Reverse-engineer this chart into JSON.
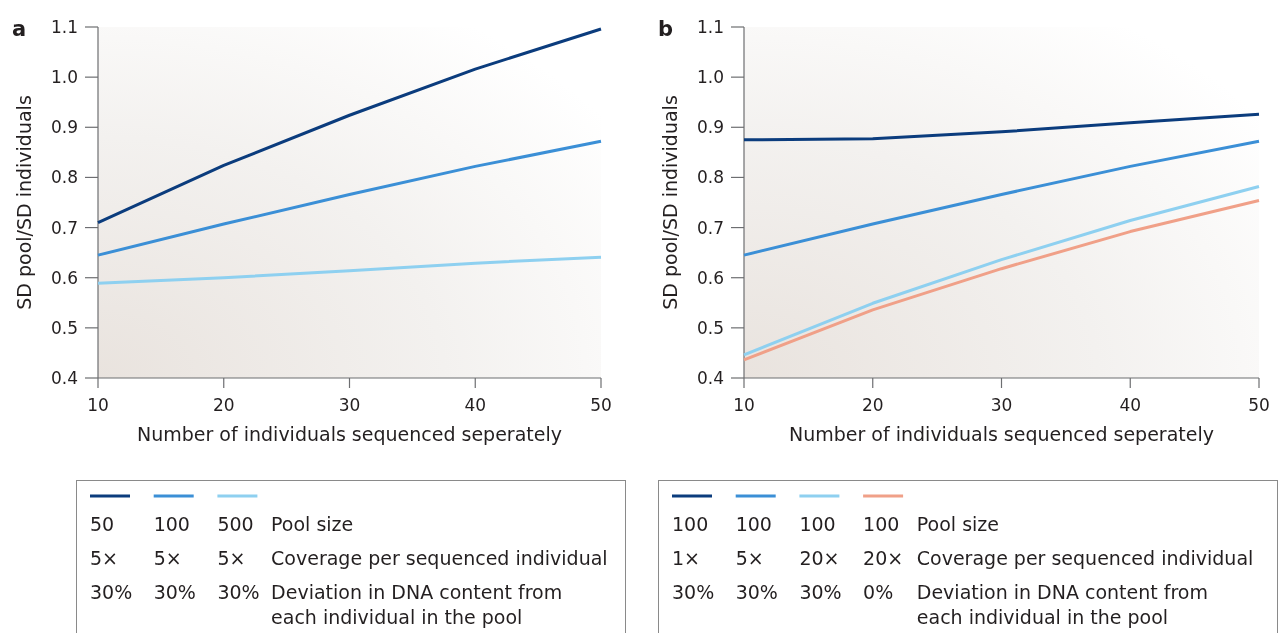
{
  "chart_data": [
    {
      "type": "line",
      "title": "a",
      "xlabel": "Number of individuals sequenced seperately",
      "ylabel": "SD pool/SD individuals",
      "x": [
        10,
        20,
        30,
        40,
        50
      ],
      "xlim": [
        10,
        50
      ],
      "xticks": [
        10,
        20,
        30,
        40,
        50
      ],
      "ylim": [
        0.4,
        1.1
      ],
      "yticks": [
        0.4,
        0.5,
        0.6,
        0.7,
        0.8,
        0.9,
        {
          "value": 1,
          "label": "1.0"
        },
        1.1
      ],
      "legend": "bottom",
      "series": [
        {
          "name": "50\n5×\n30%",
          "color": "#0b3c7d",
          "values": [
            0.71,
            0.824,
            0.924,
            1.016,
            1.096
          ]
        },
        {
          "name": "100\n5×\n30%",
          "color": "#3b8fd6",
          "values": [
            0.645,
            0.707,
            0.766,
            0.822,
            0.872
          ]
        },
        {
          "name": "500\n5×\n30%",
          "color": "#8ed0f0",
          "values": [
            0.589,
            0.6,
            0.614,
            0.629,
            0.641
          ]
        }
      ],
      "annotations": [
        "Pool size",
        "Coverage per sequenced individual",
        "Deviation in DNA content from each individual in the pool"
      ]
    },
    {
      "type": "line",
      "title": "b",
      "xlabel": "Number of individuals sequenced seperately",
      "ylabel": "SD pool/SD individuals",
      "x": [
        10,
        20,
        30,
        40,
        50
      ],
      "xlim": [
        10,
        50
      ],
      "xticks": [
        10,
        20,
        30,
        40,
        50
      ],
      "ylim": [
        0.4,
        1.1
      ],
      "yticks": [
        0.4,
        0.5,
        0.6,
        0.7,
        0.8,
        0.9,
        {
          "value": 1,
          "label": "1.0"
        },
        1.1
      ],
      "legend": "bottom",
      "series": [
        {
          "name": "100\n1×\n30%",
          "color": "#0b3c7d",
          "values": [
            0.875,
            0.877,
            0.891,
            0.909,
            0.926
          ]
        },
        {
          "name": "100\n5×\n30%",
          "color": "#3b8fd6",
          "values": [
            0.645,
            0.707,
            0.766,
            0.822,
            0.872
          ]
        },
        {
          "name": "100\n20×\n30%",
          "color": "#8ed0f0",
          "values": [
            0.446,
            0.549,
            0.636,
            0.714,
            0.782
          ]
        },
        {
          "name": "100\n20×\n0%",
          "color": "#f0a088",
          "values": [
            0.436,
            0.536,
            0.618,
            0.692,
            0.754
          ]
        }
      ],
      "annotations": [
        "Pool size",
        "Coverage per sequenced individual",
        "Deviation in DNA content from each individual in the pool"
      ]
    }
  ]
}
